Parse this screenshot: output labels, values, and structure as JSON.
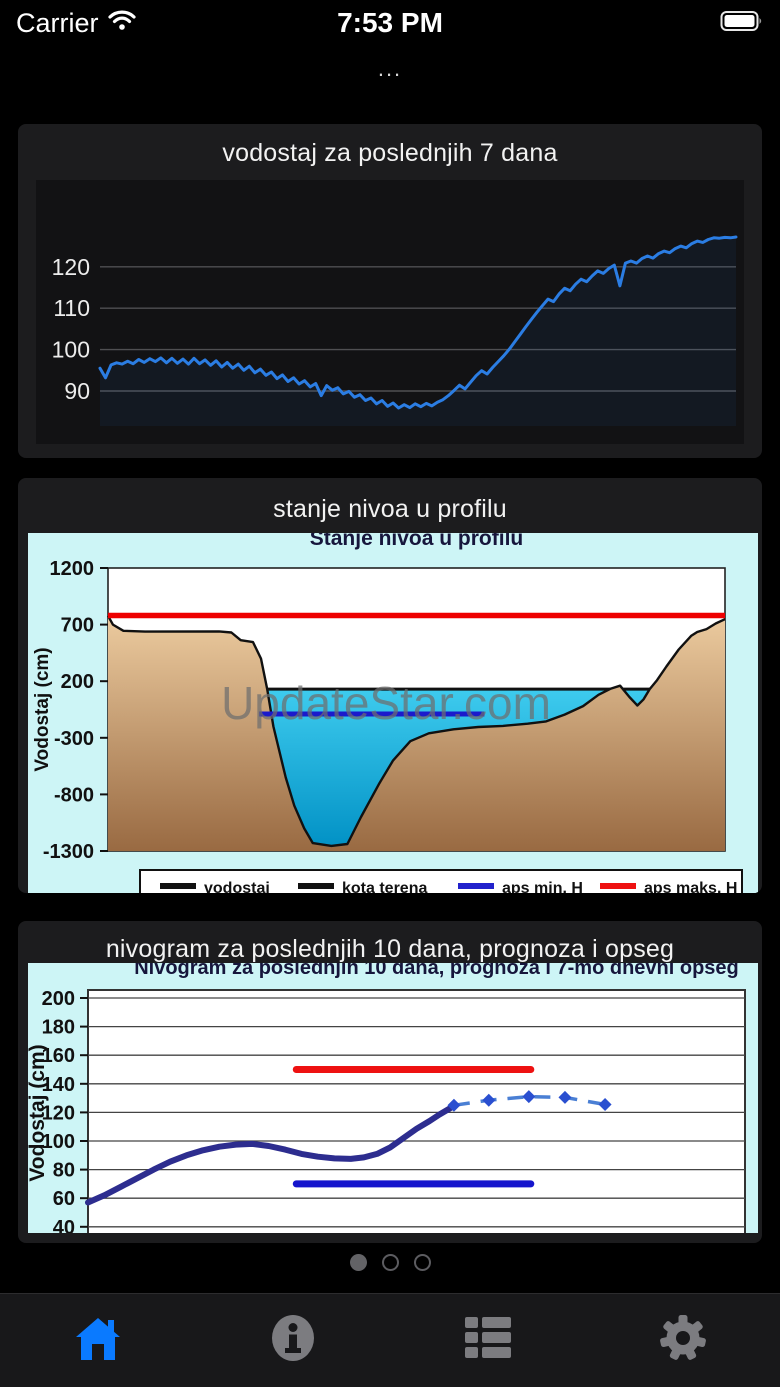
{
  "status_bar": {
    "carrier": "Carrier",
    "time": "7:53 PM",
    "battery_level": 0.92
  },
  "nav": {
    "title": "..."
  },
  "cards": [
    {
      "title": "vodostaj za poslednjih 7 dana"
    },
    {
      "title": "stanje nivoa u profilu"
    },
    {
      "title": "nivogram za poslednjih 10 dana, prognoza i opseg"
    }
  ],
  "pager": {
    "dots": 3,
    "active_index": 0
  },
  "tab_bar": {
    "items": [
      {
        "name": "home",
        "active": true
      },
      {
        "name": "info",
        "active": false
      },
      {
        "name": "stations",
        "active": false
      },
      {
        "name": "settings",
        "active": false
      }
    ],
    "active_color": "#0a7aff",
    "inactive_color": "#7c7c80"
  },
  "chart_data": [
    {
      "type": "line",
      "title": "vodostaj za poslednjih 7 dana",
      "ylabel": "",
      "yticks": [
        90,
        100,
        110,
        120
      ],
      "ylim": [
        84,
        130
      ],
      "grid": true,
      "line_color": "#2b7de3",
      "fill_color": "rgba(43,125,227,0.07)",
      "values": [
        95.5,
        93.2,
        96.3,
        96.8,
        96.5,
        97.2,
        96.6,
        97.6,
        96.9,
        97.8,
        97.1,
        98.0,
        96.8,
        97.9,
        96.7,
        97.7,
        96.5,
        97.9,
        96.6,
        97.5,
        96.2,
        97.3,
        95.8,
        96.9,
        95.5,
        96.5,
        95.0,
        96.0,
        94.4,
        95.3,
        93.8,
        94.6,
        93.0,
        93.9,
        92.3,
        93.2,
        91.7,
        92.5,
        91.0,
        91.8,
        88.9,
        91.3,
        90.2,
        90.8,
        89.3,
        89.9,
        88.5,
        89.1,
        87.7,
        88.3,
        86.9,
        87.7,
        86.3,
        87.1,
        85.9,
        86.7,
        86.0,
        86.9,
        86.2,
        87.0,
        86.4,
        87.3,
        87.9,
        88.9,
        90.1,
        91.4,
        90.5,
        92.1,
        93.7,
        94.9,
        94.1,
        95.7,
        97.1,
        98.5,
        100.1,
        101.9,
        103.7,
        105.5,
        107.3,
        109.0,
        110.6,
        112.2,
        111.6,
        113.4,
        114.8,
        114.2,
        115.8,
        117.0,
        116.4,
        117.8,
        119.0,
        118.4,
        119.6,
        120.4,
        115.4,
        120.9,
        121.4,
        120.9,
        122.0,
        122.6,
        122.1,
        123.2,
        123.8,
        123.4,
        124.4,
        125.0,
        124.6,
        125.6,
        126.2,
        125.9,
        126.6,
        127.0,
        126.9,
        127.1,
        127.0,
        127.2
      ]
    },
    {
      "type": "profile",
      "title": "Stanje nivoa u profilu",
      "ylabel": "Vodostaj (cm)",
      "yticks": [
        1200,
        700,
        200,
        -300,
        -800,
        -1300
      ],
      "ylim": [
        -1300,
        1200
      ],
      "watermark": "UpdateStar.com",
      "terrain_color_top": "#eccb9f",
      "terrain_color_bottom": "#996a42",
      "water_color_top": "#3ecbee",
      "water_color_bottom": "#0090c4",
      "terrain": [
        [
          0,
          778
        ],
        [
          0.008,
          700
        ],
        [
          0.025,
          645
        ],
        [
          0.06,
          638
        ],
        [
          0.18,
          640
        ],
        [
          0.2,
          630
        ],
        [
          0.215,
          562
        ],
        [
          0.235,
          545
        ],
        [
          0.248,
          400
        ],
        [
          0.258,
          130
        ],
        [
          0.268,
          -200
        ],
        [
          0.288,
          -650
        ],
        [
          0.302,
          -900
        ],
        [
          0.318,
          -1100
        ],
        [
          0.332,
          -1230
        ],
        [
          0.362,
          -1255
        ],
        [
          0.388,
          -1238
        ],
        [
          0.41,
          -1000
        ],
        [
          0.44,
          -700
        ],
        [
          0.462,
          -500
        ],
        [
          0.49,
          -330
        ],
        [
          0.52,
          -260
        ],
        [
          0.56,
          -225
        ],
        [
          0.6,
          -205
        ],
        [
          0.64,
          -195
        ],
        [
          0.68,
          -175
        ],
        [
          0.71,
          -155
        ],
        [
          0.74,
          -95
        ],
        [
          0.77,
          -20
        ],
        [
          0.795,
          80
        ],
        [
          0.815,
          135
        ],
        [
          0.83,
          160
        ],
        [
          0.845,
          60
        ],
        [
          0.858,
          -15
        ],
        [
          0.868,
          40
        ],
        [
          0.878,
          130
        ],
        [
          0.89,
          210
        ],
        [
          0.905,
          330
        ],
        [
          0.925,
          480
        ],
        [
          0.945,
          600
        ],
        [
          0.955,
          635
        ],
        [
          0.97,
          660
        ],
        [
          0.985,
          710
        ],
        [
          1,
          748
        ]
      ],
      "water_level": 130,
      "water_span": [
        0.245,
        0.89
      ],
      "lines": [
        {
          "name": "aps maks. H",
          "value": 780,
          "span": [
            0,
            1
          ],
          "color": "#ee0000",
          "width": 5.5
        },
        {
          "name": "aps min. H",
          "value": -90,
          "span": [
            0.245,
            0.61
          ],
          "color": "#1a1acc",
          "width": 5
        }
      ],
      "legend": [
        {
          "label": "vodostaj",
          "color": "#111111"
        },
        {
          "label": "kota terena",
          "color": "#111111"
        },
        {
          "label": "aps min. H",
          "color": "#2222cc"
        },
        {
          "label": "aps maks. H",
          "color": "#ee1111"
        }
      ]
    },
    {
      "type": "nivogram",
      "title": "Nivogram za poslednjih 10 dana, prognoza i 7-mo dnevni opseg",
      "ylabel": "Vodostaj (cm)",
      "yticks": [
        40,
        60,
        80,
        100,
        120,
        140,
        160,
        180,
        200
      ],
      "ylim": [
        36,
        205
      ],
      "grid": true,
      "series_color": "#2d2d8f",
      "series": [
        [
          0,
          57
        ],
        [
          0.025,
          62
        ],
        [
          0.05,
          68
        ],
        [
          0.075,
          74
        ],
        [
          0.1,
          80
        ],
        [
          0.125,
          85.5
        ],
        [
          0.15,
          90
        ],
        [
          0.175,
          93.5
        ],
        [
          0.2,
          96
        ],
        [
          0.225,
          97.5
        ],
        [
          0.25,
          98
        ],
        [
          0.275,
          96.5
        ],
        [
          0.3,
          94
        ],
        [
          0.325,
          91
        ],
        [
          0.35,
          89
        ],
        [
          0.375,
          87.8
        ],
        [
          0.4,
          87.5
        ],
        [
          0.42,
          88.5
        ],
        [
          0.44,
          91
        ],
        [
          0.46,
          95.5
        ],
        [
          0.48,
          102
        ],
        [
          0.5,
          108.5
        ],
        [
          0.52,
          114
        ],
        [
          0.535,
          118.5
        ],
        [
          0.548,
          122
        ],
        [
          0.557,
          124.5
        ]
      ],
      "forecast_color": "#4a7fd4",
      "forecast": [
        [
          0.557,
          125
        ],
        [
          0.61,
          128.5
        ],
        [
          0.671,
          131
        ],
        [
          0.726,
          130.5
        ],
        [
          0.787,
          125.5
        ]
      ],
      "lines": [
        {
          "name": "upper-range",
          "value": 150,
          "span": [
            0.317,
            0.674
          ],
          "color": "#ee1111",
          "width": 7
        },
        {
          "name": "lower-range",
          "value": 70,
          "span": [
            0.317,
            0.674
          ],
          "color": "#1515cc",
          "width": 7
        }
      ]
    }
  ]
}
